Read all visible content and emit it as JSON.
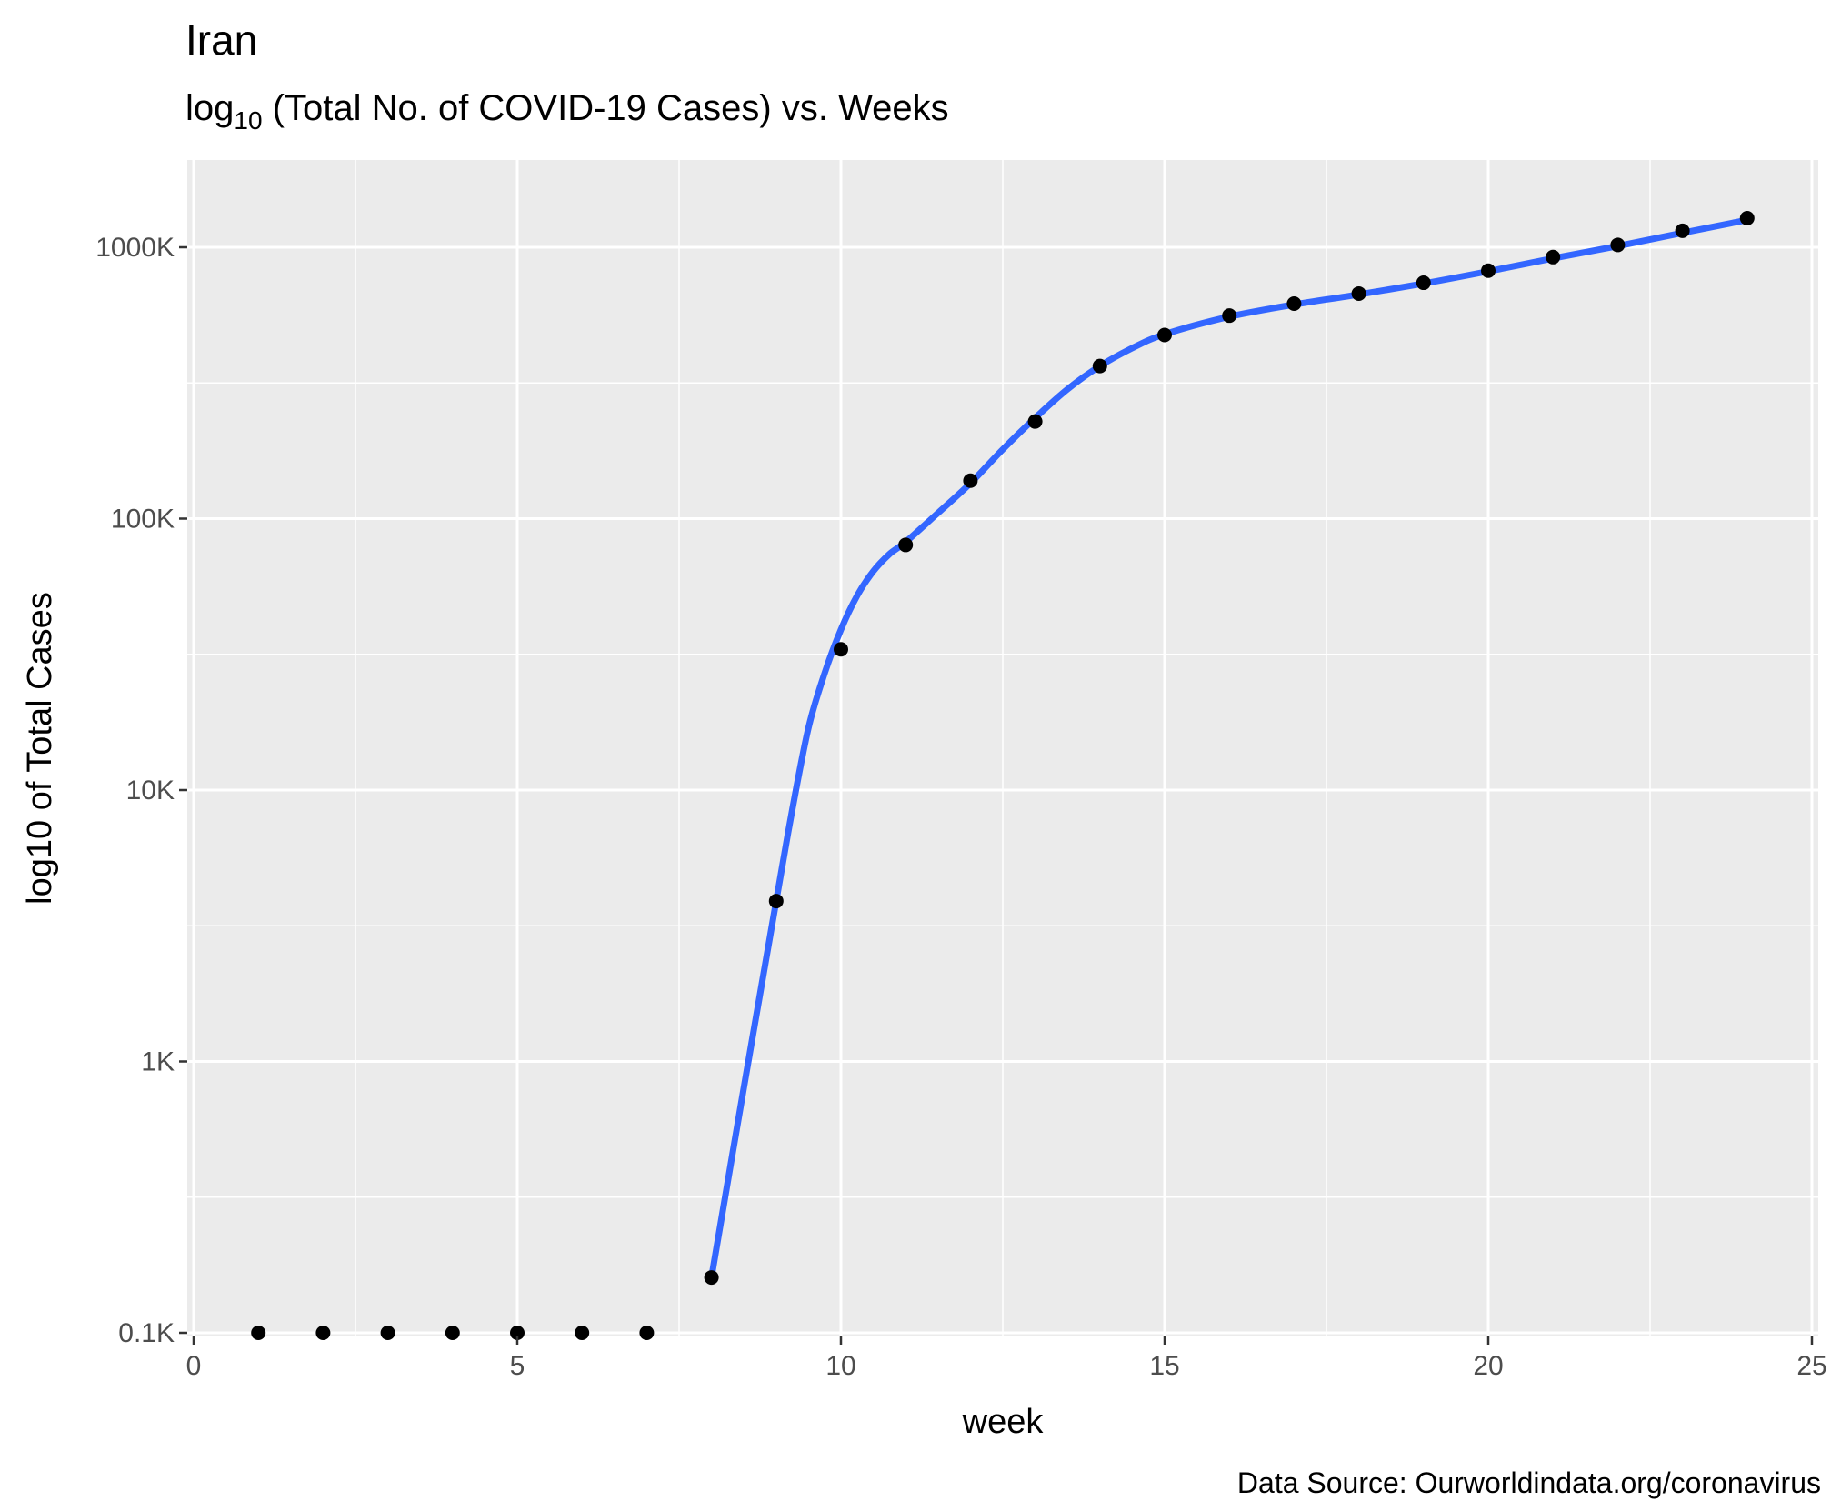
{
  "chart_data": {
    "type": "scatter",
    "title": "Iran",
    "subtitle": {
      "prefix": "log",
      "subscript": "10",
      "rest": " (Total No. of COVID-19 Cases) vs. Weeks"
    },
    "xlabel": "week",
    "ylabel": "log10 of Total Cases",
    "caption": "Data Source: Ourworldindata.org/coronavirus",
    "x_scale": "linear",
    "y_scale": "log10",
    "xlim": [
      0,
      25
    ],
    "ylim": [
      100,
      1800000
    ],
    "grid": true,
    "x_ticks": [
      {
        "value": 0,
        "label": "0"
      },
      {
        "value": 5,
        "label": "5"
      },
      {
        "value": 10,
        "label": "10"
      },
      {
        "value": 15,
        "label": "15"
      },
      {
        "value": 20,
        "label": "20"
      },
      {
        "value": 25,
        "label": "25"
      }
    ],
    "y_ticks": [
      {
        "value": 100,
        "label": "0.1K"
      },
      {
        "value": 1000,
        "label": "1K"
      },
      {
        "value": 10000,
        "label": "10K"
      },
      {
        "value": 100000,
        "label": "100K"
      },
      {
        "value": 1000000,
        "label": "1000K"
      }
    ],
    "points": {
      "color": "#000000",
      "x": [
        1,
        2,
        3,
        4,
        5,
        6,
        7,
        8,
        9,
        10,
        11,
        12,
        13,
        14,
        15,
        16,
        17,
        18,
        19,
        20,
        21,
        22,
        23,
        24
      ],
      "y": [
        96,
        96,
        96,
        96,
        96,
        96,
        96,
        160,
        3900,
        33000,
        80000,
        138000,
        228000,
        365000,
        475000,
        560000,
        620000,
        675000,
        740000,
        820000,
        920000,
        1020000,
        1150000,
        1280000
      ]
    },
    "smooth_line": {
      "color": "#3366ff",
      "x": [
        8,
        8.5,
        9,
        9.25,
        9.5,
        9.75,
        10,
        10.25,
        10.5,
        10.75,
        11,
        11.5,
        12,
        12.5,
        13,
        13.5,
        14,
        14.5,
        15,
        16,
        17,
        18,
        19,
        20,
        21,
        22,
        23,
        24
      ],
      "y": [
        160,
        800,
        3900,
        8500,
        17000,
        27000,
        39000,
        52000,
        64000,
        74000,
        82000,
        105000,
        135000,
        180000,
        235000,
        300000,
        365000,
        425000,
        478000,
        555000,
        615000,
        670000,
        735000,
        815000,
        910000,
        1010000,
        1130000,
        1260000
      ]
    }
  }
}
